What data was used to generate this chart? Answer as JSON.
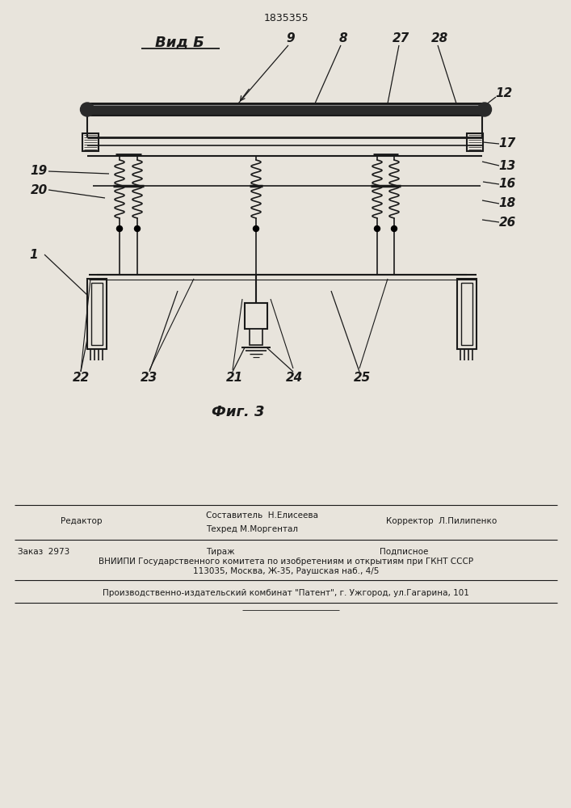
{
  "patent_number": "1835355",
  "view_label": "Вид Б",
  "fig_label": "Фиг. 3",
  "bg_color": "#e8e4dc",
  "line_color": "#1a1a1a",
  "text_color": "#1a1a1a",
  "bottom_text": {
    "editor": "Редактор",
    "compiler": "Составитель  Н.Елисеева",
    "techred": "Техред М.Моргентал",
    "corrector": "Корректор  Л.Пилипенко",
    "order": "Заказ  2973",
    "tirazh": "Тираж",
    "podp": "Подписное",
    "vniip1": "ВНИИПИ Государственного комитета по изобретениям и открытиям при ГКНТ СССР",
    "vniip2": "113035, Москва, Ж-35, Раушская наб., 4/5",
    "prod": "Производственно-издательский комбинат \"Патент\", г. Ужгород, ул.Гагарина, 101"
  }
}
